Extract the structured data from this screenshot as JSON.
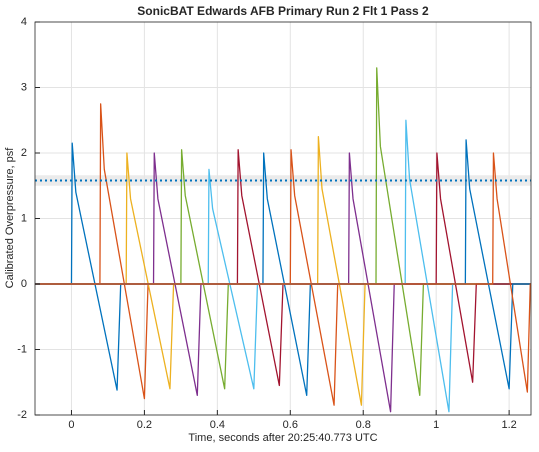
{
  "chart_data": {
    "type": "line",
    "title": "SonicBAT Edwards AFB Primary Run 2 Flt 1 Pass 2",
    "x_label": "Time, seconds after 20:25:40.773 UTC",
    "y_label": "Calibrated Overpressure, psf",
    "xlim": [
      -0.1,
      1.26
    ],
    "ylim": [
      -2,
      4
    ],
    "xticks": [
      0,
      0.2,
      0.4,
      0.6,
      0.8,
      1,
      1.2
    ],
    "yticks": [
      -2,
      -1,
      0,
      1,
      2,
      3,
      4
    ],
    "grid": true,
    "reference_line": {
      "value": 1.58,
      "band": [
        1.5,
        1.66
      ],
      "color": "#0072BD"
    },
    "series": [
      {
        "color": "#0072BD",
        "x": [
          -0.1,
          0.0,
          0.002,
          0.012,
          0.125,
          0.135,
          1.26
        ],
        "values": [
          0,
          0,
          2.15,
          1.4,
          -1.62,
          0,
          0
        ]
      },
      {
        "color": "#D95319",
        "x": [
          -0.1,
          0.078,
          0.08,
          0.09,
          0.2,
          0.21,
          1.26
        ],
        "values": [
          0,
          0,
          2.75,
          1.75,
          -1.75,
          0,
          0
        ]
      },
      {
        "color": "#EDB120",
        "x": [
          -0.1,
          0.15,
          0.152,
          0.162,
          0.27,
          0.28,
          1.26
        ],
        "values": [
          0,
          0,
          2.0,
          1.3,
          -1.6,
          0,
          0
        ]
      },
      {
        "color": "#7E2F8E",
        "x": [
          -0.1,
          0.225,
          0.227,
          0.237,
          0.345,
          0.355,
          1.26
        ],
        "values": [
          0,
          0,
          2.0,
          1.3,
          -1.7,
          0,
          0
        ]
      },
      {
        "color": "#77AC30",
        "x": [
          -0.1,
          0.3,
          0.302,
          0.312,
          0.42,
          0.43,
          1.26
        ],
        "values": [
          0,
          0,
          2.05,
          1.35,
          -1.6,
          0,
          0
        ]
      },
      {
        "color": "#4DBEEE",
        "x": [
          -0.1,
          0.375,
          0.377,
          0.387,
          0.5,
          0.51,
          1.26
        ],
        "values": [
          0,
          0,
          1.75,
          1.15,
          -1.6,
          0,
          0
        ]
      },
      {
        "color": "#A2142F",
        "x": [
          -0.1,
          0.455,
          0.457,
          0.467,
          0.57,
          0.58,
          1.26
        ],
        "values": [
          0,
          0,
          2.05,
          1.35,
          -1.55,
          0,
          0
        ]
      },
      {
        "color": "#0072BD",
        "x": [
          -0.1,
          0.525,
          0.527,
          0.537,
          0.645,
          0.655,
          1.26
        ],
        "values": [
          0,
          0,
          2.0,
          1.3,
          -1.7,
          0,
          0
        ]
      },
      {
        "color": "#D95319",
        "x": [
          -0.1,
          0.6,
          0.602,
          0.612,
          0.72,
          0.73,
          1.26
        ],
        "values": [
          0,
          0,
          2.05,
          1.35,
          -1.85,
          0,
          0
        ]
      },
      {
        "color": "#EDB120",
        "x": [
          -0.1,
          0.675,
          0.677,
          0.687,
          0.795,
          0.805,
          1.26
        ],
        "values": [
          0,
          0,
          2.25,
          1.45,
          -1.85,
          0,
          0
        ]
      },
      {
        "color": "#7E2F8E",
        "x": [
          -0.1,
          0.76,
          0.762,
          0.772,
          0.875,
          0.885,
          1.26
        ],
        "values": [
          0,
          0,
          2.0,
          1.3,
          -1.95,
          0,
          0
        ]
      },
      {
        "color": "#77AC30",
        "x": [
          -0.1,
          0.835,
          0.837,
          0.847,
          0.955,
          0.965,
          1.26
        ],
        "values": [
          0,
          0,
          3.3,
          2.1,
          -1.7,
          0,
          0
        ]
      },
      {
        "color": "#4DBEEE",
        "x": [
          -0.1,
          0.915,
          0.917,
          0.927,
          1.035,
          1.045,
          1.26
        ],
        "values": [
          0,
          0,
          2.5,
          1.6,
          -1.95,
          0,
          0
        ]
      },
      {
        "color": "#A2142F",
        "x": [
          -0.1,
          1.0,
          1.002,
          1.012,
          1.1,
          1.11,
          1.26
        ],
        "values": [
          0,
          0,
          2.0,
          1.3,
          -1.5,
          0,
          0
        ]
      },
      {
        "color": "#0072BD",
        "x": [
          -0.1,
          1.08,
          1.082,
          1.092,
          1.2,
          1.21,
          1.26
        ],
        "values": [
          0,
          0,
          2.2,
          1.45,
          -1.6,
          0,
          0
        ]
      },
      {
        "color": "#D95319",
        "x": [
          -0.1,
          1.155,
          1.157,
          1.167,
          1.25,
          1.258,
          1.26
        ],
        "values": [
          0,
          0,
          2.0,
          1.3,
          -1.65,
          0,
          0
        ]
      }
    ]
  }
}
